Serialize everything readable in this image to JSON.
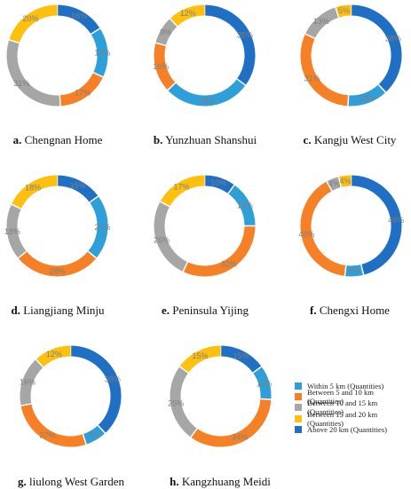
{
  "colors": {
    "within5": "#2e9fd9",
    "b5to10": "#f58025",
    "b10to15": "#a6a6a6",
    "b15to20": "#fdc00f",
    "above20": "#1f6fc5"
  },
  "legend": [
    {
      "label": "Within 5 km (Quantities)",
      "color_key": "within5"
    },
    {
      "label": "Between 5 and 10 km (Quantities)",
      "color_key": "b5to10"
    },
    {
      "label": "Between 10 and 15 km (Quantities)",
      "color_key": "b10to15"
    },
    {
      "label": "Between 15 and 20 km (Quantities)",
      "color_key": "b15to20"
    },
    {
      "label": "Above 20 km (Quantities)",
      "color_key": "above20"
    }
  ],
  "chart_data": [
    {
      "type": "pie",
      "letter": "a.",
      "title": "Chengnan Home",
      "categories": [
        "Within 5 km (Quantities)",
        "Between 5 and 10 km (Quantities)",
        "Between 10 and 15 km (Quantities)",
        "Between 15 and 20 km (Quantities)",
        "Above 20 km (Quantities)"
      ],
      "values": [
        16,
        17,
        31,
        20,
        16
      ],
      "labels": [
        "16%",
        "17%",
        "31%",
        "20%",
        "16%"
      ]
    },
    {
      "type": "pie",
      "letter": "b.",
      "title": "Yunzhuan Shanshui",
      "categories": [
        "Within 5 km (Quantities)",
        "Between 5 and 10 km (Quantities)",
        "Between 10 and 15 km (Quantities)",
        "Between 15 and 20 km (Quantities)",
        "Above 20 km (Quantities)"
      ],
      "values": [
        28,
        16,
        9,
        12,
        35
      ],
      "labels": [
        "28%",
        "16%",
        "9%",
        "12%",
        "35%"
      ]
    },
    {
      "type": "pie",
      "letter": "c.",
      "title": "Kangju West City",
      "categories": [
        "Within 5 km (Quantities)",
        "Between 5 and 10 km (Quantities)",
        "Between 10 and 15 km (Quantities)",
        "Between 15 and 20 km (Quantities)",
        "Above 20 km (Quantities)"
      ],
      "values": [
        13,
        31,
        13,
        5,
        38
      ],
      "labels": [
        "13%",
        "31%",
        "13%",
        "5%",
        "38%"
      ]
    },
    {
      "type": "pie",
      "letter": "d.",
      "title": "Liangjiang Minju",
      "categories": [
        "Within 5 km (Quantities)",
        "Between 5 and 10 km (Quantities)",
        "Between 10 and 15 km (Quantities)",
        "Between 15 and 20 km (Quantities)",
        "Above 20 km (Quantities)"
      ],
      "values": [
        21,
        28,
        18,
        18,
        15
      ],
      "labels": [
        "21%",
        "28%",
        "18%",
        "18%",
        "15%"
      ]
    },
    {
      "type": "pie",
      "letter": "e.",
      "title": "Peninsula Yijing",
      "categories": [
        "Within 5 km (Quantities)",
        "Between 5 and 10 km (Quantities)",
        "Between 10 and 15 km (Quantities)",
        "Between 15 and 20 km (Quantities)",
        "Above 20 km (Quantities)"
      ],
      "values": [
        15,
        32,
        26,
        17,
        10
      ],
      "labels": [
        "15%",
        "32%",
        "26%",
        "17%",
        "10%"
      ]
    },
    {
      "type": "pie",
      "letter": "f.",
      "title": "Chengxi Home",
      "categories": [
        "Within 5 km (Quantities)",
        "Between 5 and 10 km (Quantities)",
        "Between 10 and 15 km (Quantities)",
        "Between 15 and 20 km (Quantities)",
        "Above 20 km (Quantities)"
      ],
      "values": [
        6,
        40,
        4,
        4,
        46
      ],
      "labels": [
        "6%",
        "40%",
        "4%",
        "4%",
        "46%"
      ]
    },
    {
      "type": "pie",
      "letter": "g.",
      "title": "liulong West Garden",
      "categories": [
        "Within 5 km (Quantities)",
        "Between 5 and 10 km (Quantities)",
        "Between 10 and 15 km (Quantities)",
        "Between 15 and 20 km (Quantities)",
        "Above 20 km (Quantities)"
      ],
      "values": [
        7,
        27,
        16,
        12,
        38
      ],
      "labels": [
        "7%",
        "27%",
        "16%",
        "12%",
        "38%"
      ]
    },
    {
      "type": "pie",
      "letter": "h.",
      "title": "Kangzhuang Meidi",
      "categories": [
        "Within 5 km (Quantities)",
        "Between 5 and 10 km (Quantities)",
        "Between 10 and 15 km (Quantities)",
        "Between 15 and 20 km (Quantities)",
        "Above 20 km (Quantities)"
      ],
      "values": [
        11,
        34,
        25,
        15,
        15
      ],
      "labels": [
        "11%",
        "34%",
        "25%",
        "15%",
        "15%"
      ]
    }
  ]
}
